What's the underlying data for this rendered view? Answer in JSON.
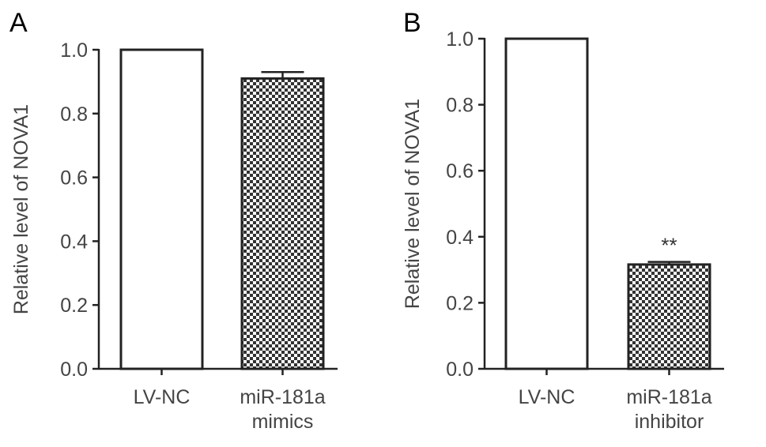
{
  "chart_data": [
    {
      "type": "bar",
      "panel_label": "A",
      "ylabel": "Relative level of NOVA1",
      "ylim": [
        0,
        1.0
      ],
      "yticks": [
        "0.0",
        "0.2",
        "0.4",
        "0.6",
        "0.8",
        "1.0"
      ],
      "categories": [
        [
          "LV-NC"
        ],
        [
          "miR-181a",
          "mimics"
        ]
      ],
      "values": [
        1.0,
        0.91
      ],
      "errors": [
        0,
        0.02
      ],
      "annotations": [
        "",
        ""
      ],
      "fills": [
        "white",
        "checker"
      ]
    },
    {
      "type": "bar",
      "panel_label": "B",
      "ylabel": "Relative level of NOVA1",
      "ylim": [
        0,
        1.0
      ],
      "yticks": [
        "0.0",
        "0.2",
        "0.4",
        "0.6",
        "0.8",
        "1.0"
      ],
      "categories": [
        [
          "LV-NC"
        ],
        [
          "miR-181a",
          "inhibitor"
        ]
      ],
      "values": [
        1.0,
        0.316
      ],
      "errors": [
        0,
        0.008
      ],
      "annotations": [
        "",
        "**"
      ],
      "fills": [
        "white",
        "checker"
      ]
    }
  ]
}
